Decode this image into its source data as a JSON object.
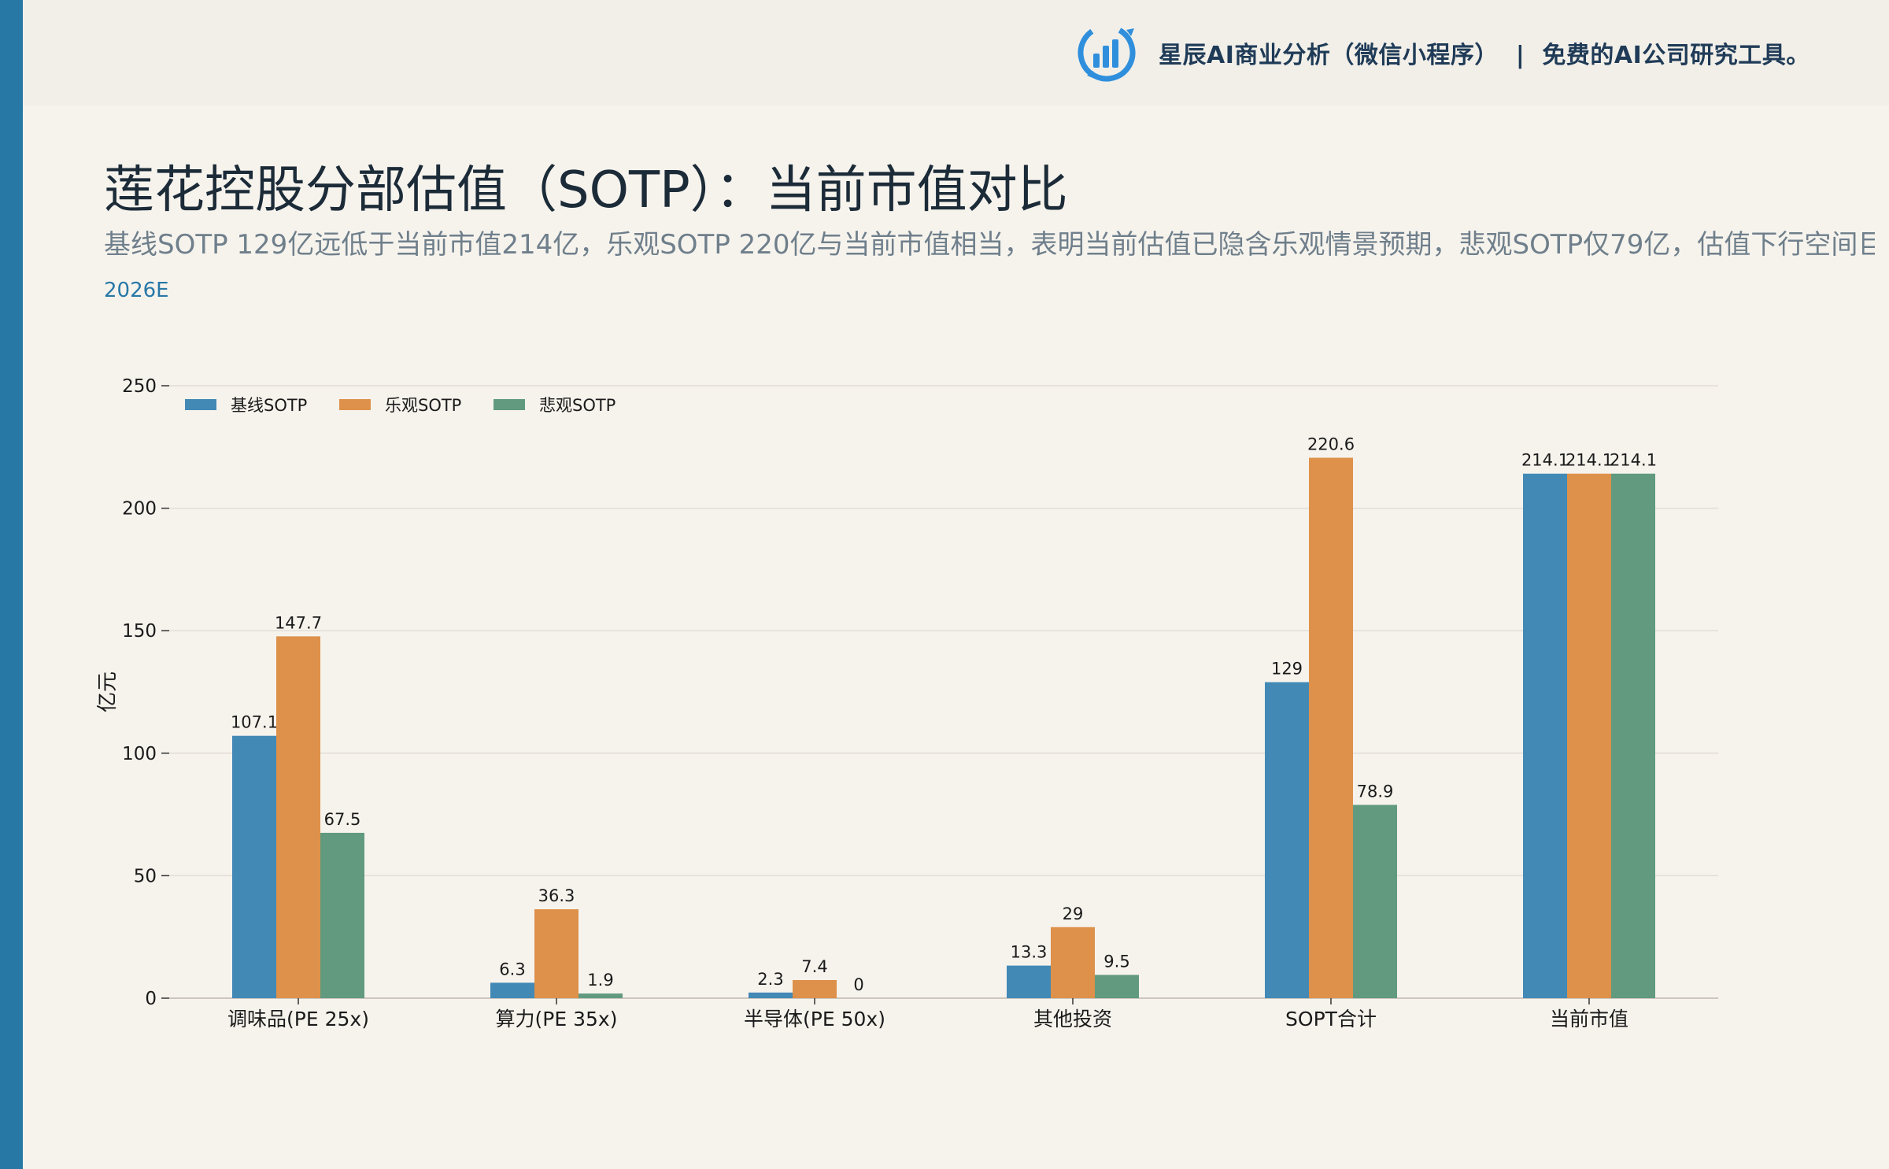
{
  "header": {
    "brand_name": "星辰AI商业分析（微信小程序）",
    "separator": "|",
    "tagline": "免费的AI公司研究工具。",
    "logo_icon": "bar-chart-refresh-icon"
  },
  "page": {
    "title": "莲花控股分部估值（SOTP）：当前市值对比",
    "subtitle": "基线SOTP 129亿远低于当前市值214亿，乐观SOTP 220亿与当前市值相当，表明当前估值已隐含乐观情景预期，悲观SOTP仅79亿，估值下行空间巨大",
    "tag": "2026E"
  },
  "colors": {
    "accent": "#2878a6",
    "background": "#f6f3ed",
    "header_bg": "#f2efe9"
  },
  "chart_data": {
    "type": "bar",
    "ylabel": "亿元",
    "ylim": [
      0,
      250
    ],
    "yticks": [
      0,
      50,
      100,
      150,
      200,
      250
    ],
    "grid": true,
    "legend_position": "top-left",
    "categories": [
      "调味品(PE 25x)",
      "算力(PE 35x)",
      "半导体(PE 50x)",
      "其他投资",
      "SOPT合计",
      "当前市值"
    ],
    "series": [
      {
        "name": "基线SOTP",
        "color": "#4289b6",
        "values": [
          107.1,
          6.3,
          2.3,
          13.3,
          129,
          214.1
        ],
        "labels": [
          "107.1",
          "6.3",
          "2.3",
          "13.3",
          "129",
          "214.1"
        ]
      },
      {
        "name": "乐观SOTP",
        "color": "#de914a",
        "values": [
          147.7,
          36.3,
          7.4,
          29,
          220.6,
          214.1
        ],
        "labels": [
          "147.7",
          "36.3",
          "7.4",
          "29",
          "220.6",
          "214.1"
        ]
      },
      {
        "name": "悲观SOTP",
        "color": "#619a7f",
        "values": [
          67.5,
          1.9,
          0,
          9.5,
          78.9,
          214.1
        ],
        "labels": [
          "67.5",
          "1.9",
          "0",
          "9.5",
          "78.9",
          "214.1"
        ]
      }
    ]
  }
}
